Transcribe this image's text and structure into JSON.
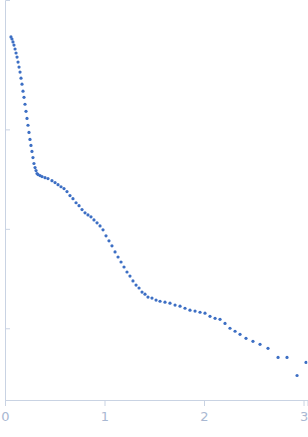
{
  "chart_data": {
    "type": "scatter",
    "log": "y",
    "tick_labels": "x",
    "color": "#3d6fc4",
    "marker": "circle",
    "x": [
      0.06,
      0.07,
      0.08,
      0.09,
      0.101,
      0.111,
      0.121,
      0.131,
      0.141,
      0.151,
      0.161,
      0.171,
      0.181,
      0.191,
      0.201,
      0.211,
      0.221,
      0.231,
      0.241,
      0.251,
      0.261,
      0.271,
      0.281,
      0.291,
      0.302,
      0.312,
      0.322,
      0.332,
      0.352,
      0.372,
      0.402,
      0.432,
      0.472,
      0.503,
      0.533,
      0.563,
      0.593,
      0.623,
      0.653,
      0.683,
      0.714,
      0.744,
      0.774,
      0.804,
      0.834,
      0.864,
      0.894,
      0.925,
      0.955,
      0.985,
      1.015,
      1.045,
      1.075,
      1.106,
      1.136,
      1.166,
      1.196,
      1.226,
      1.256,
      1.286,
      1.317,
      1.347,
      1.377,
      1.407,
      1.437,
      1.477,
      1.518,
      1.558,
      1.608,
      1.658,
      1.709,
      1.759,
      1.809,
      1.859,
      1.91,
      1.96,
      2.01,
      2.06,
      2.111,
      2.161,
      2.211,
      2.261,
      2.312,
      2.362,
      2.422,
      2.492,
      2.563,
      2.643,
      2.744,
      2.834,
      2.935,
      3.025
    ],
    "values": [
      8.5,
      8.11,
      7.57,
      7.05,
      6.43,
      5.86,
      5.34,
      4.75,
      4.23,
      3.77,
      3.27,
      2.85,
      2.42,
      2.1,
      1.79,
      1.52,
      1.29,
      1.1,
      0.933,
      0.792,
      0.689,
      0.6,
      0.521,
      0.454,
      0.413,
      0.385,
      0.36,
      0.351,
      0.343,
      0.335,
      0.327,
      0.32,
      0.305,
      0.292,
      0.278,
      0.265,
      0.254,
      0.237,
      0.216,
      0.201,
      0.183,
      0.171,
      0.156,
      0.145,
      0.138,
      0.132,
      0.123,
      0.115,
      0.107,
      0.0977,
      0.085,
      0.0757,
      0.0674,
      0.0586,
      0.0521,
      0.0464,
      0.0413,
      0.0368,
      0.0335,
      0.0299,
      0.0272,
      0.0254,
      0.0231,
      0.022,
      0.0206,
      0.0201,
      0.0192,
      0.0187,
      0.0183,
      0.0179,
      0.0171,
      0.0167,
      0.0159,
      0.0152,
      0.0149,
      0.0145,
      0.0142,
      0.0132,
      0.0126,
      0.0123,
      0.0112,
      0.01,
      0.00933,
      0.00869,
      0.00793,
      0.00739,
      0.00689,
      0.00628,
      0.00509,
      0.00509,
      0.00335,
      0.00454
    ],
    "xlim": [
      0,
      3.04
    ],
    "xticks": [
      0,
      1,
      2,
      3
    ],
    "ylim": [
      0.0019,
      20
    ],
    "yticks": [
      0.01,
      0.1,
      1
    ]
  }
}
